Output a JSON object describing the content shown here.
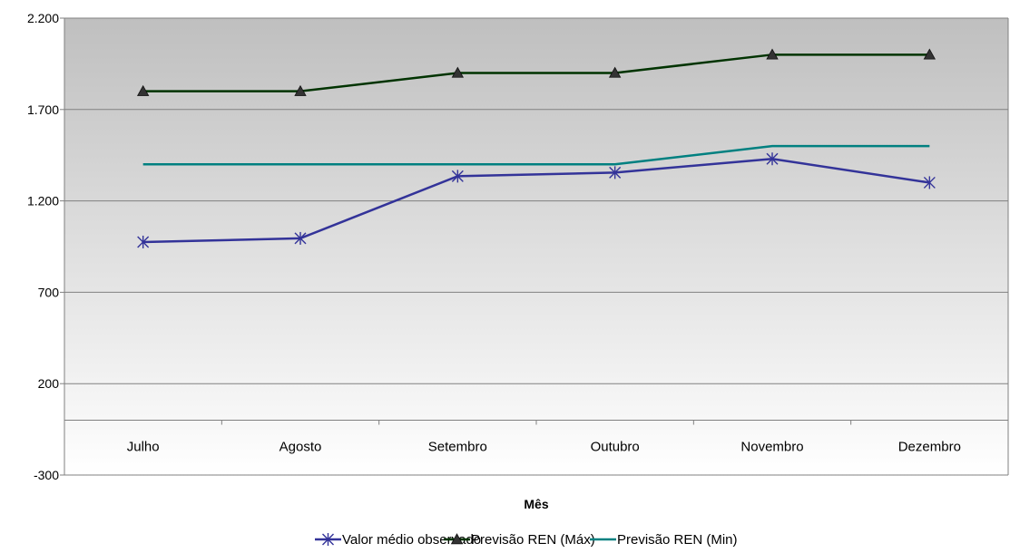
{
  "chart_data": {
    "type": "line",
    "title": "",
    "xlabel": "Mês",
    "ylabel": "",
    "ylim": [
      -300,
      2200
    ],
    "yticks": [
      -300,
      200,
      700,
      1200,
      1700,
      2200
    ],
    "ytick_labels": [
      "-300",
      "200",
      "700",
      "1.200",
      "1.700",
      "2.200"
    ],
    "categories": [
      "Julho",
      "Agosto",
      "Setembro",
      "Outubro",
      "Novembro",
      "Dezembro"
    ],
    "grid": true,
    "legend_position": "bottom",
    "series": [
      {
        "name": "Valor médio observado",
        "values": [
          975,
          995,
          1335,
          1355,
          1430,
          1300
        ],
        "color": "#333399",
        "marker": "asterisk"
      },
      {
        "name": "Previsão REN (Máx)",
        "values": [
          1800,
          1800,
          1900,
          1900,
          2000,
          2000
        ],
        "color": "#003300",
        "marker": "triangle"
      },
      {
        "name": "Previsão REN (Min)",
        "values": [
          1400,
          1400,
          1400,
          1400,
          1500,
          1500
        ],
        "color": "#008080",
        "marker": "none"
      }
    ],
    "colors": {
      "plot_gradient_top": "#bfbfbf",
      "plot_gradient_bottom": "#ffffff",
      "gridline": "#808080",
      "axis": "#808080"
    }
  }
}
